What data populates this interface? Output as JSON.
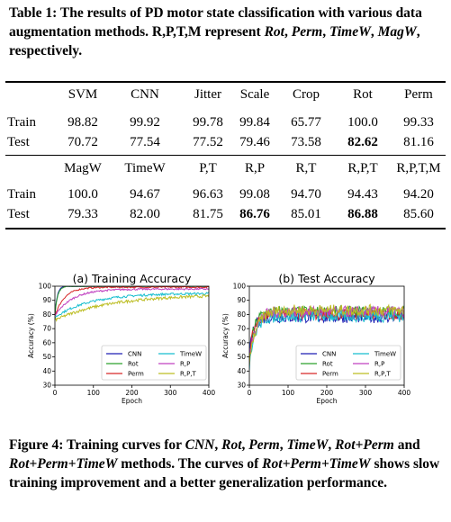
{
  "table_caption": {
    "label": "Table 1:",
    "text_a": "The results of PD motor state classification with various data augmentation methods. R,P,T,M represent",
    "rot": "Rot",
    "perm": "Perm",
    "timew": "TimeW",
    "magw": "MagW",
    "sep": ",",
    "and": "respectively."
  },
  "table": {
    "header1": [
      "SVM",
      "CNN",
      "Jitter",
      "Scale",
      "Crop",
      "Rot",
      "Perm"
    ],
    "header2": [
      "MagW",
      "TimeW",
      "P,T",
      "R,P",
      "R,T",
      "R,P,T",
      "R,P,T,M"
    ],
    "rows1": [
      {
        "label": "Train",
        "values": [
          "98.82",
          "99.92",
          "99.78",
          "99.84",
          "65.77",
          "100.0",
          "99.33"
        ],
        "bold": []
      },
      {
        "label": "Test",
        "values": [
          "70.72",
          "77.54",
          "77.52",
          "79.46",
          "73.58",
          "82.62",
          "81.16"
        ],
        "bold": [
          5
        ]
      }
    ],
    "rows2": [
      {
        "label": "Train",
        "values": [
          "100.0",
          "94.67",
          "96.63",
          "99.08",
          "94.70",
          "94.43",
          "94.20"
        ],
        "bold": []
      },
      {
        "label": "Test",
        "values": [
          "79.33",
          "82.00",
          "81.75",
          "86.76",
          "85.01",
          "86.88",
          "85.60"
        ],
        "bold": [
          3,
          5
        ]
      }
    ]
  },
  "chart_data": [
    {
      "type": "line",
      "title": "(a) Training Accuracy",
      "xlabel": "Epoch",
      "ylabel": "Accuracy (%)",
      "xlim": [
        0,
        400
      ],
      "ylim": [
        30,
        100
      ],
      "xticks": [
        "0",
        "100",
        "200",
        "300",
        "400"
      ],
      "yticks": [
        "30",
        "40",
        "50",
        "60",
        "70",
        "80",
        "90",
        "100"
      ],
      "legend_position": "bottom",
      "series": [
        {
          "name": "CNN",
          "color": "#1f1fb4",
          "start": 80,
          "end": 100,
          "k": 6,
          "noise": 0.3
        },
        {
          "name": "Rot",
          "color": "#2ca02c",
          "start": 80,
          "end": 100,
          "k": 7,
          "noise": 0.3
        },
        {
          "name": "Perm",
          "color": "#d62728",
          "start": 79,
          "end": 99.3,
          "k": 25,
          "noise": 0.5
        },
        {
          "name": "TimeW",
          "color": "#17becf",
          "start": 78,
          "end": 95,
          "k": 90,
          "noise": 0.8
        },
        {
          "name": "R,P",
          "color": "#c040c0",
          "start": 79,
          "end": 98,
          "k": 45,
          "noise": 0.6
        },
        {
          "name": "R,P,T",
          "color": "#bcbd22",
          "start": 76,
          "end": 94,
          "k": 140,
          "noise": 1.0
        }
      ]
    },
    {
      "type": "line",
      "title": "(b) Test Accuracy",
      "xlabel": "Epoch",
      "ylabel": "Accuracy (%)",
      "xlim": [
        0,
        400
      ],
      "ylim": [
        30,
        100
      ],
      "xticks": [
        "0",
        "100",
        "200",
        "300",
        "400"
      ],
      "yticks": [
        "30",
        "40",
        "50",
        "60",
        "70",
        "80",
        "90",
        "100"
      ],
      "legend_position": "bottom",
      "series": [
        {
          "name": "CNN",
          "color": "#1f1fb4",
          "start": 50,
          "end": 78,
          "k": 10,
          "noise": 4
        },
        {
          "name": "Rot",
          "color": "#2ca02c",
          "start": 48,
          "end": 82,
          "k": 12,
          "noise": 4
        },
        {
          "name": "Perm",
          "color": "#d62728",
          "start": 50,
          "end": 80,
          "k": 12,
          "noise": 4
        },
        {
          "name": "TimeW",
          "color": "#17becf",
          "start": 45,
          "end": 79,
          "k": 15,
          "noise": 4.5
        },
        {
          "name": "R,P",
          "color": "#c040c0",
          "start": 47,
          "end": 82,
          "k": 15,
          "noise": 4
        },
        {
          "name": "R,P,T",
          "color": "#bcbd22",
          "start": 46,
          "end": 83,
          "k": 18,
          "noise": 4
        }
      ]
    }
  ],
  "figure_caption": {
    "label": "Figure 4:",
    "text_a": "Training curves for",
    "cnn": "CNN",
    "rot": "Rot",
    "perm": "Perm",
    "timew": "TimeW",
    "rotperm": "Rot+Perm",
    "rotpermtimew": "Rot+Perm+TimeW",
    "sep": ",",
    "and": "and",
    "text_b": "methods. The curves of",
    "text_c": "shows slow training improvement and a better generalization performance."
  }
}
